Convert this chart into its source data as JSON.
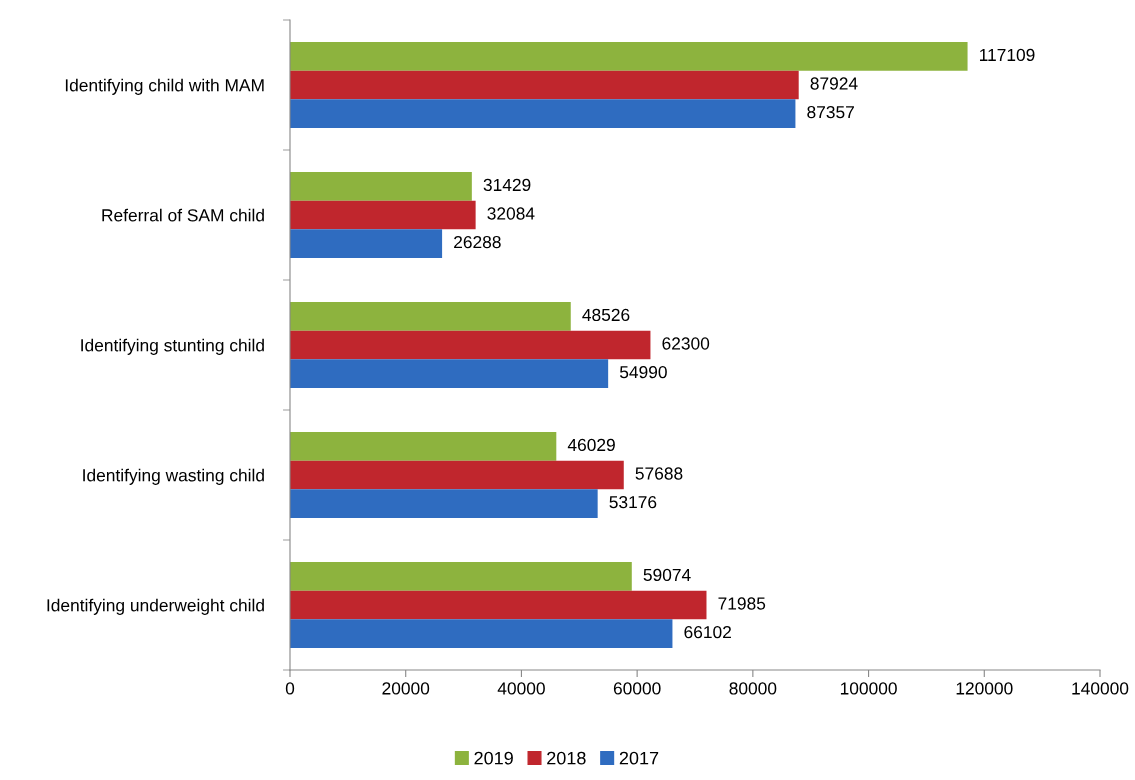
{
  "chart_data": {
    "type": "bar",
    "orientation": "horizontal",
    "categories": [
      "Identifying child with MAM",
      "Referral of SAM child",
      "Identifying stunting child",
      "Identifying wasting child",
      "Identifying underweight child"
    ],
    "series": [
      {
        "name": "2019",
        "color": "#8db33e",
        "values": [
          117109,
          31429,
          48526,
          46029,
          59074
        ]
      },
      {
        "name": "2018",
        "color": "#c0262d",
        "values": [
          87924,
          32084,
          62300,
          57688,
          71985
        ]
      },
      {
        "name": "2017",
        "color": "#2f6cc0",
        "values": [
          87357,
          26288,
          54990,
          53176,
          66102
        ]
      }
    ],
    "xlim": [
      0,
      140000
    ],
    "xticks": [
      0,
      20000,
      40000,
      60000,
      80000,
      100000,
      120000,
      140000
    ],
    "data_labels": true,
    "legend": "bottom",
    "grid": false
  }
}
